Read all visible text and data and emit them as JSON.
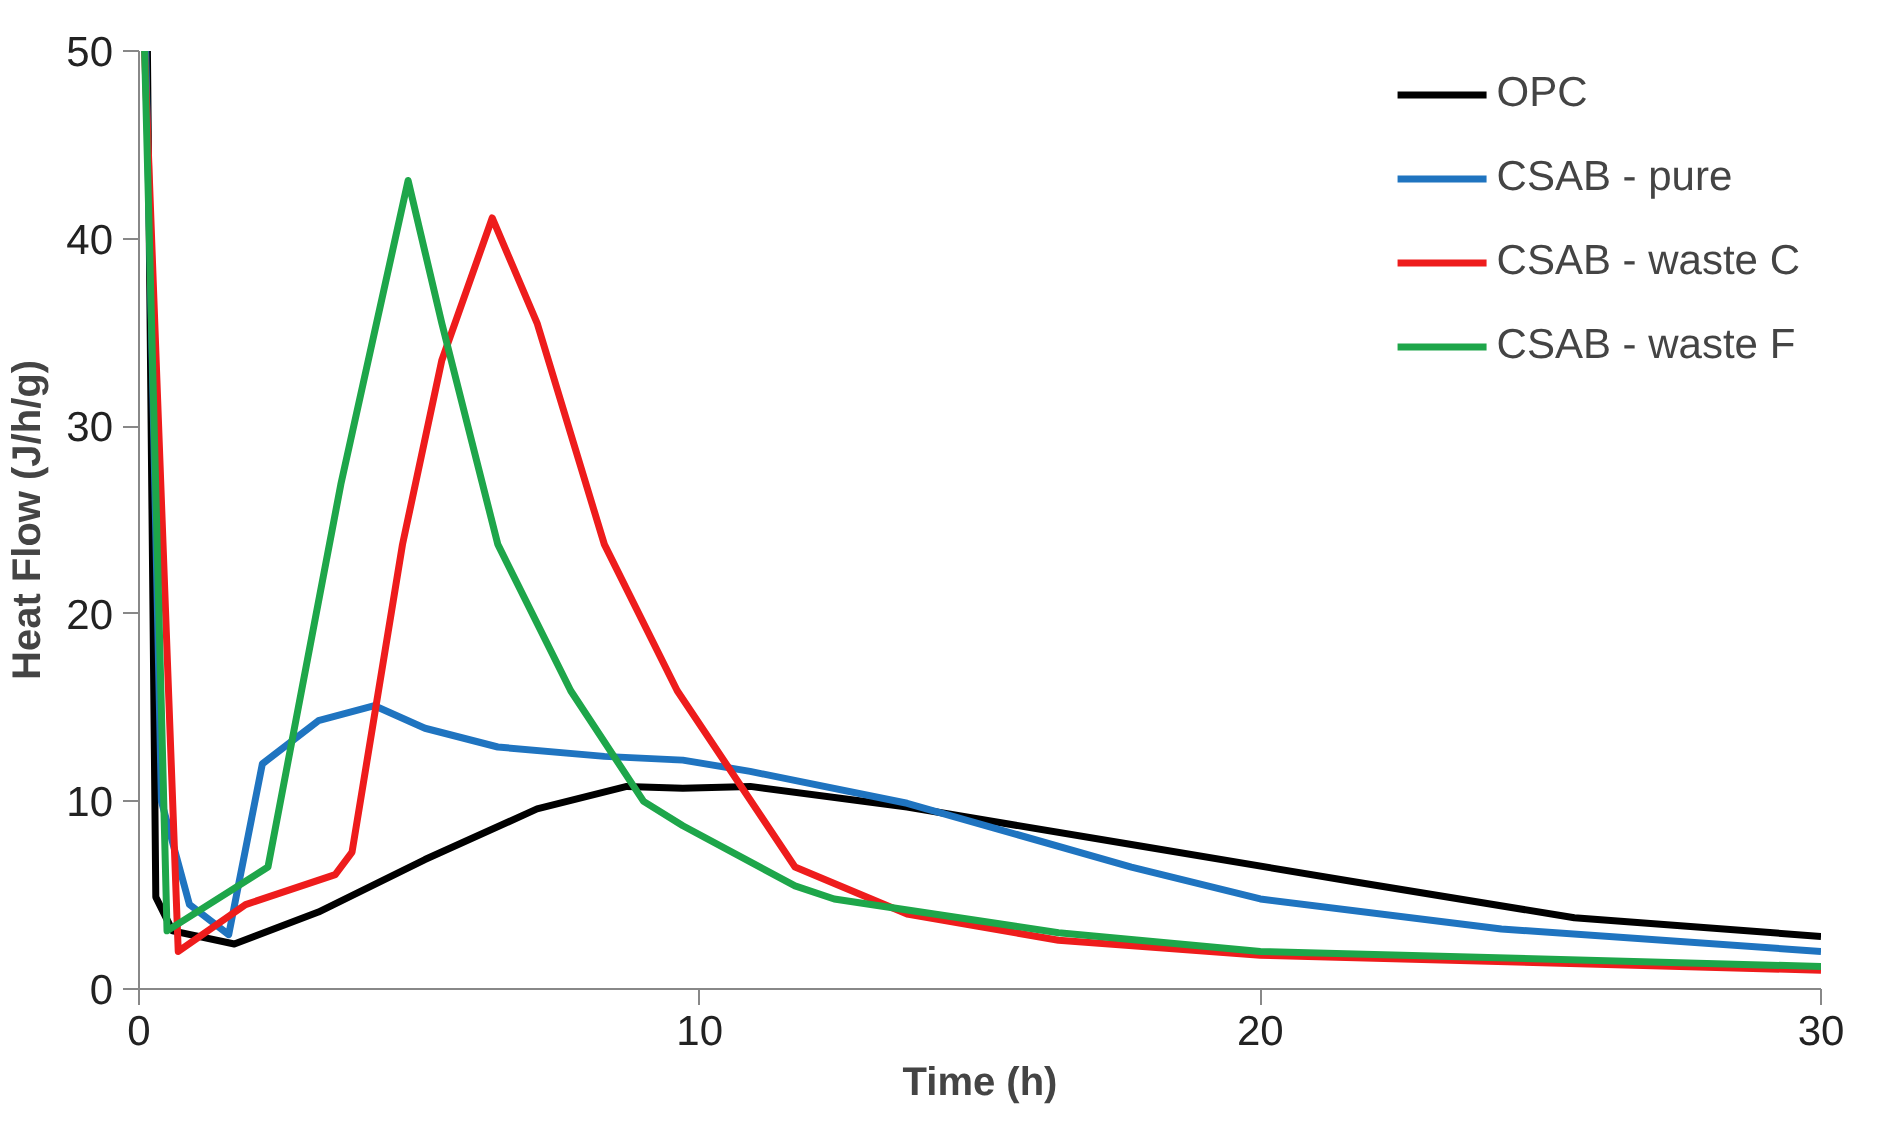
{
  "chart_data": {
    "type": "line",
    "xlabel": "Time (h)",
    "ylabel": "Heat Flow (J/h/g)",
    "xlim": [
      0,
      30
    ],
    "ylim": [
      0,
      50
    ],
    "xticks": [
      0,
      10,
      20,
      30
    ],
    "yticks": [
      0,
      10,
      20,
      30,
      40,
      50
    ],
    "grid": false,
    "legend": "top right",
    "marker": "none",
    "line_style": "solid",
    "series": [
      {
        "name": "OPC",
        "color": "#000000",
        "x": [
          0.15,
          0.3,
          0.6,
          1.7,
          3.2,
          5.1,
          7.1,
          8.7,
          9.7,
          10.9,
          13.7,
          17.7,
          21.7,
          25.6,
          30
        ],
        "values": [
          50,
          4.9,
          3.1,
          2.4,
          4.1,
          6.9,
          9.6,
          10.8,
          10.7,
          10.8,
          9.7,
          7.7,
          5.7,
          3.8,
          2.8
        ]
      },
      {
        "name": "CSAB - pure",
        "color": "#1f74c0",
        "x": [
          0.12,
          0.4,
          0.9,
          1.6,
          2.2,
          3.2,
          4.2,
          5.1,
          6.4,
          8.3,
          9.7,
          10.9,
          13.7,
          17.7,
          20,
          24.3,
          30
        ],
        "values": [
          50,
          10,
          4.5,
          2.9,
          12,
          14.3,
          15.1,
          13.9,
          12.9,
          12.4,
          12.2,
          11.6,
          9.9,
          6.5,
          4.8,
          3.2,
          2.0
        ]
      },
      {
        "name": "CSAB - waste C",
        "color": "#ee1c1c",
        "x": [
          0.1,
          0.7,
          1.9,
          3.5,
          3.8,
          4.7,
          5.4,
          6.3,
          7.1,
          8.3,
          9.6,
          11.7,
          13.7,
          16.4,
          20,
          30
        ],
        "values": [
          50,
          2.0,
          4.5,
          6.1,
          7.3,
          23.7,
          33.5,
          41.1,
          35.5,
          23.7,
          15.9,
          6.5,
          4.0,
          2.6,
          1.8,
          1.0
        ]
      },
      {
        "name": "CSAB - waste F",
        "color": "#1ea64a",
        "x": [
          0.1,
          0.5,
          2.3,
          3.6,
          4.8,
          5.4,
          6.4,
          7.7,
          9.0,
          9.7,
          11.7,
          12.4,
          16.4,
          20,
          30
        ],
        "values": [
          50,
          3.1,
          6.5,
          26.9,
          43.1,
          35.5,
          23.7,
          15.9,
          10,
          8.7,
          5.5,
          4.8,
          3.0,
          2.0,
          1.2
        ]
      }
    ]
  }
}
